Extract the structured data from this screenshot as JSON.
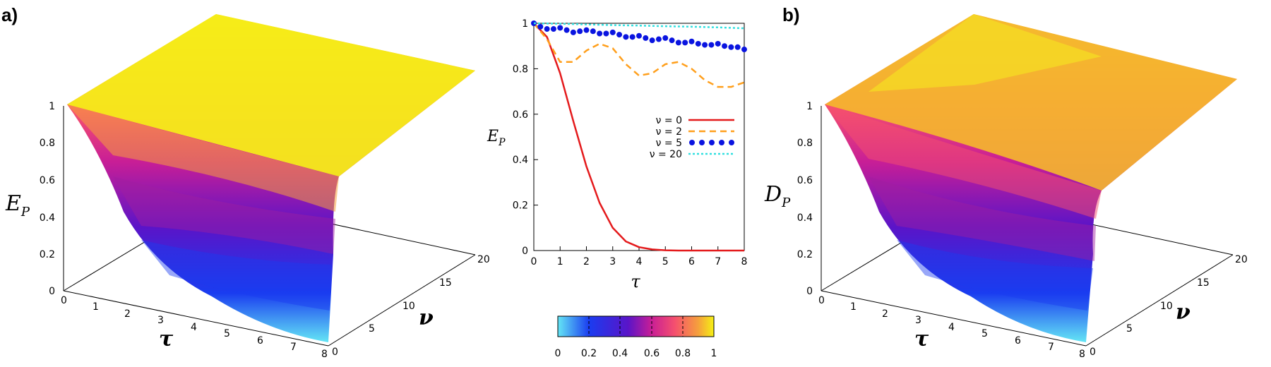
{
  "panels": {
    "a_label": "a)",
    "b_label": "b)"
  },
  "surface_a": {
    "zlabel_main": "E",
    "zlabel_sub": "P",
    "xlabel": "τ",
    "ylabel": "ν",
    "zticks": [
      "0",
      "0.2",
      "0.4",
      "0.6",
      "0.8",
      "1"
    ],
    "xticks": [
      "0",
      "1",
      "2",
      "3",
      "4",
      "5",
      "6",
      "7",
      "8"
    ],
    "yticks": [
      "0",
      "5",
      "10",
      "15",
      "20"
    ]
  },
  "surface_b": {
    "zlabel_main": "D",
    "zlabel_sub": "P",
    "xlabel": "τ",
    "ylabel": "ν",
    "zticks": [
      "0",
      "0.2",
      "0.4",
      "0.6",
      "0.8",
      "1"
    ],
    "xticks": [
      "0",
      "1",
      "2",
      "3",
      "4",
      "5",
      "6",
      "7",
      "8"
    ],
    "yticks": [
      "0",
      "5",
      "10",
      "15",
      "20"
    ]
  },
  "chart_data": {
    "type": "line",
    "xlabel": "τ",
    "ylabel_main": "E",
    "ylabel_sub": "P",
    "xlim": [
      0,
      8
    ],
    "ylim": [
      0,
      1
    ],
    "xticks": [
      "0",
      "1",
      "2",
      "3",
      "4",
      "5",
      "6",
      "7",
      "8"
    ],
    "yticks": [
      "0",
      "0.2",
      "0.4",
      "0.6",
      "0.8",
      "1"
    ],
    "legend_position": "right-middle",
    "series": [
      {
        "name": "ν = 0",
        "style": "solid",
        "color": "#e41a1c",
        "x": [
          0,
          0.5,
          1,
          1.5,
          2,
          2.5,
          3,
          3.5,
          4,
          4.5,
          5,
          5.5,
          6,
          7,
          8
        ],
        "y": [
          1,
          0.94,
          0.78,
          0.57,
          0.37,
          0.21,
          0.1,
          0.04,
          0.015,
          0.005,
          0.001,
          0,
          0,
          0,
          0
        ]
      },
      {
        "name": "ν = 2",
        "style": "dashed",
        "color": "#ff9f1c",
        "x": [
          0,
          0.5,
          1,
          1.5,
          2,
          2.5,
          3,
          3.5,
          4,
          4.5,
          5,
          5.5,
          6,
          6.5,
          7,
          7.5,
          8
        ],
        "y": [
          1,
          0.93,
          0.83,
          0.83,
          0.88,
          0.91,
          0.89,
          0.82,
          0.77,
          0.78,
          0.82,
          0.83,
          0.8,
          0.75,
          0.72,
          0.72,
          0.74
        ]
      },
      {
        "name": "ν = 5",
        "style": "dotted",
        "color": "#0a14e0",
        "x": [
          0,
          0.25,
          0.5,
          0.75,
          1,
          1.25,
          1.5,
          1.75,
          2,
          2.25,
          2.5,
          2.75,
          3,
          3.25,
          3.5,
          3.75,
          4,
          4.25,
          4.5,
          4.75,
          5,
          5.25,
          5.5,
          5.75,
          6,
          6.25,
          6.5,
          6.75,
          7,
          7.25,
          7.5,
          7.75,
          8
        ],
        "y": [
          1,
          0.985,
          0.975,
          0.975,
          0.98,
          0.97,
          0.96,
          0.965,
          0.97,
          0.965,
          0.955,
          0.955,
          0.96,
          0.95,
          0.94,
          0.94,
          0.945,
          0.935,
          0.925,
          0.93,
          0.935,
          0.925,
          0.915,
          0.915,
          0.92,
          0.91,
          0.905,
          0.905,
          0.91,
          0.9,
          0.895,
          0.895,
          0.885
        ]
      },
      {
        "name": "ν = 20",
        "style": "dashed",
        "color": "#33e0e0",
        "x": [
          0,
          1,
          2,
          3,
          4,
          5,
          6,
          7,
          8
        ],
        "y": [
          1,
          0.998,
          0.995,
          0.992,
          0.99,
          0.987,
          0.985,
          0.982,
          0.978
        ]
      }
    ]
  },
  "colorbar": {
    "ticks": [
      "0",
      "0.2",
      "0.4",
      "0.6",
      "0.8",
      "1"
    ],
    "stops": [
      "#64e6f5",
      "#1a3cf0",
      "#5a14c8",
      "#c81e96",
      "#f5506e",
      "#f5a03c",
      "#f5f014"
    ]
  }
}
